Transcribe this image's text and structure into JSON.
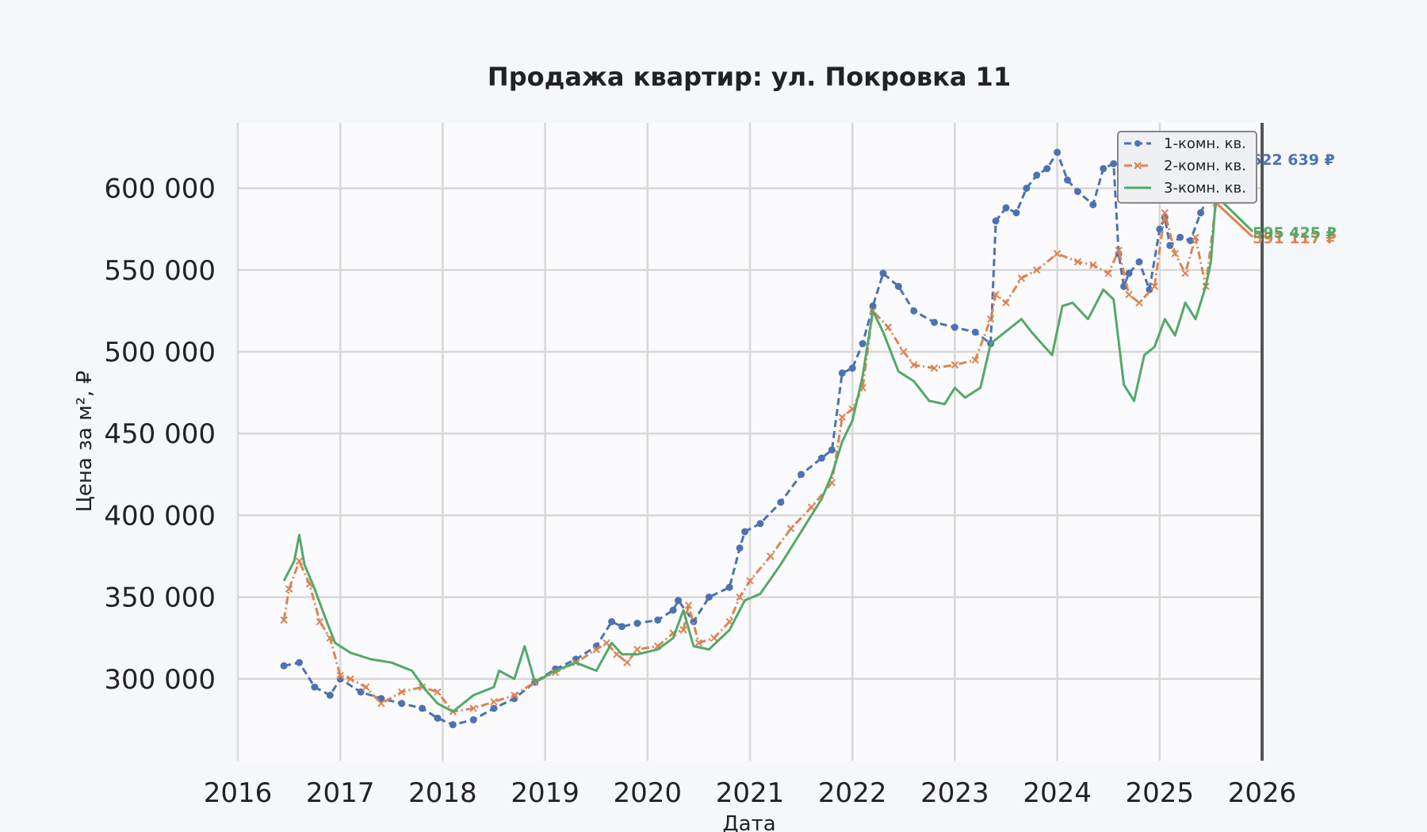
{
  "chart_data": {
    "type": "line",
    "title": "Продажа квартир: ул. Покровка 11",
    "xlabel": "Дата",
    "ylabel": "Цена за м², ₽",
    "xlim": [
      2016.0,
      2026.0
    ],
    "ylim": [
      250000,
      640000
    ],
    "xticks": [
      2016,
      2017,
      2018,
      2019,
      2020,
      2021,
      2022,
      2023,
      2024,
      2025,
      2026
    ],
    "xtick_labels": [
      "2016",
      "2017",
      "2018",
      "2019",
      "2020",
      "2021",
      "2022",
      "2023",
      "2024",
      "2025",
      "2026"
    ],
    "yticks": [
      300000,
      350000,
      400000,
      450000,
      500000,
      550000,
      600000
    ],
    "ytick_labels": [
      "300 000",
      "350 000",
      "400 000",
      "450 000",
      "500 000",
      "550 000",
      "600 000"
    ],
    "grid": true,
    "legend_position": "top-right",
    "series": [
      {
        "name": "1-комн. кв.",
        "color": "#4c72b0",
        "style": "dashed",
        "marker": "circle",
        "end_label": "622 639 ₽",
        "x": [
          2016.45,
          2016.6,
          2016.75,
          2016.9,
          2017.0,
          2017.2,
          2017.4,
          2017.6,
          2017.8,
          2017.95,
          2018.1,
          2018.3,
          2018.5,
          2018.7,
          2018.9,
          2019.1,
          2019.3,
          2019.5,
          2019.65,
          2019.75,
          2019.9,
          2020.1,
          2020.25,
          2020.3,
          2020.45,
          2020.6,
          2020.8,
          2020.9,
          2020.95,
          2021.1,
          2021.3,
          2021.5,
          2021.7,
          2021.8,
          2021.9,
          2022.0,
          2022.1,
          2022.2,
          2022.3,
          2022.45,
          2022.6,
          2022.8,
          2023.0,
          2023.2,
          2023.35,
          2023.4,
          2023.5,
          2023.6,
          2023.7,
          2023.8,
          2023.9,
          2024.0,
          2024.1,
          2024.2,
          2024.35,
          2024.45,
          2024.55,
          2024.6,
          2024.65,
          2024.7,
          2024.8,
          2024.9,
          2025.0,
          2025.05,
          2025.1,
          2025.2,
          2025.3,
          2025.4,
          2025.5,
          2025.55
        ],
        "values": [
          308000,
          310000,
          295000,
          290000,
          300000,
          292000,
          288000,
          285000,
          282000,
          276000,
          272000,
          275000,
          282000,
          288000,
          298000,
          306000,
          312000,
          320000,
          335000,
          332000,
          334000,
          336000,
          342000,
          348000,
          335000,
          350000,
          356000,
          380000,
          390000,
          395000,
          408000,
          425000,
          435000,
          440000,
          487000,
          490000,
          505000,
          528000,
          548000,
          540000,
          525000,
          518000,
          515000,
          512000,
          505000,
          580000,
          588000,
          585000,
          600000,
          608000,
          612000,
          622000,
          605000,
          598000,
          590000,
          612000,
          615000,
          560000,
          540000,
          548000,
          555000,
          538000,
          575000,
          582000,
          565000,
          570000,
          568000,
          585000,
          598000,
          622639
        ]
      },
      {
        "name": "2-комн. кв.",
        "color": "#dd8452",
        "style": "dashdot",
        "marker": "star",
        "end_label": "591 117 ₽",
        "x": [
          2016.45,
          2016.5,
          2016.6,
          2016.7,
          2016.8,
          2016.9,
          2017.0,
          2017.1,
          2017.25,
          2017.4,
          2017.6,
          2017.8,
          2017.95,
          2018.1,
          2018.3,
          2018.5,
          2018.7,
          2018.9,
          2019.1,
          2019.3,
          2019.5,
          2019.6,
          2019.7,
          2019.8,
          2019.9,
          2020.1,
          2020.25,
          2020.35,
          2020.4,
          2020.5,
          2020.65,
          2020.8,
          2020.9,
          2021.0,
          2021.2,
          2021.4,
          2021.6,
          2021.8,
          2021.9,
          2022.0,
          2022.1,
          2022.2,
          2022.35,
          2022.5,
          2022.6,
          2022.8,
          2023.0,
          2023.2,
          2023.35,
          2023.4,
          2023.5,
          2023.65,
          2023.8,
          2024.0,
          2024.2,
          2024.35,
          2024.5,
          2024.6,
          2024.7,
          2024.8,
          2024.95,
          2025.05,
          2025.15,
          2025.25,
          2025.35,
          2025.45,
          2025.55
        ],
        "values": [
          336000,
          355000,
          372000,
          358000,
          335000,
          325000,
          302000,
          300000,
          295000,
          285000,
          292000,
          295000,
          292000,
          280000,
          282000,
          286000,
          290000,
          298000,
          304000,
          310000,
          318000,
          322000,
          315000,
          310000,
          318000,
          320000,
          328000,
          330000,
          345000,
          322000,
          325000,
          335000,
          350000,
          360000,
          375000,
          392000,
          405000,
          420000,
          460000,
          465000,
          478000,
          525000,
          515000,
          500000,
          492000,
          490000,
          492000,
          495000,
          520000,
          535000,
          530000,
          545000,
          550000,
          560000,
          555000,
          553000,
          548000,
          562000,
          535000,
          530000,
          540000,
          585000,
          560000,
          548000,
          570000,
          540000,
          591117
        ]
      },
      {
        "name": "3-комн. кв.",
        "color": "#55a868",
        "style": "solid",
        "marker": "none",
        "end_label": "595 425 ₽",
        "x": [
          2016.45,
          2016.55,
          2016.6,
          2016.65,
          2016.75,
          2016.85,
          2016.95,
          2017.1,
          2017.3,
          2017.5,
          2017.7,
          2017.85,
          2017.95,
          2018.1,
          2018.3,
          2018.5,
          2018.55,
          2018.7,
          2018.8,
          2018.9,
          2019.1,
          2019.3,
          2019.5,
          2019.65,
          2019.75,
          2019.9,
          2020.1,
          2020.25,
          2020.35,
          2020.45,
          2020.6,
          2020.8,
          2020.9,
          2020.95,
          2021.1,
          2021.3,
          2021.5,
          2021.7,
          2021.8,
          2021.9,
          2022.0,
          2022.1,
          2022.2,
          2022.3,
          2022.45,
          2022.6,
          2022.75,
          2022.9,
          2023.0,
          2023.1,
          2023.25,
          2023.35,
          2023.45,
          2023.55,
          2023.65,
          2023.75,
          2023.85,
          2023.95,
          2024.05,
          2024.15,
          2024.3,
          2024.45,
          2024.55,
          2024.65,
          2024.75,
          2024.85,
          2024.95,
          2025.05,
          2025.15,
          2025.25,
          2025.35,
          2025.45,
          2025.5,
          2025.55
        ],
        "values": [
          360000,
          372000,
          388000,
          370000,
          355000,
          338000,
          322000,
          316000,
          312000,
          310000,
          305000,
          292000,
          285000,
          280000,
          290000,
          295000,
          305000,
          300000,
          320000,
          298000,
          305000,
          310000,
          305000,
          322000,
          315000,
          315000,
          318000,
          325000,
          342000,
          320000,
          318000,
          330000,
          342000,
          348000,
          352000,
          370000,
          390000,
          410000,
          425000,
          445000,
          458000,
          485000,
          525000,
          512000,
          488000,
          482000,
          470000,
          468000,
          478000,
          472000,
          478000,
          505000,
          510000,
          515000,
          520000,
          512000,
          505000,
          498000,
          528000,
          530000,
          520000,
          538000,
          532000,
          480000,
          470000,
          498000,
          503000,
          520000,
          510000,
          530000,
          520000,
          540000,
          555000,
          595425
        ]
      }
    ]
  }
}
